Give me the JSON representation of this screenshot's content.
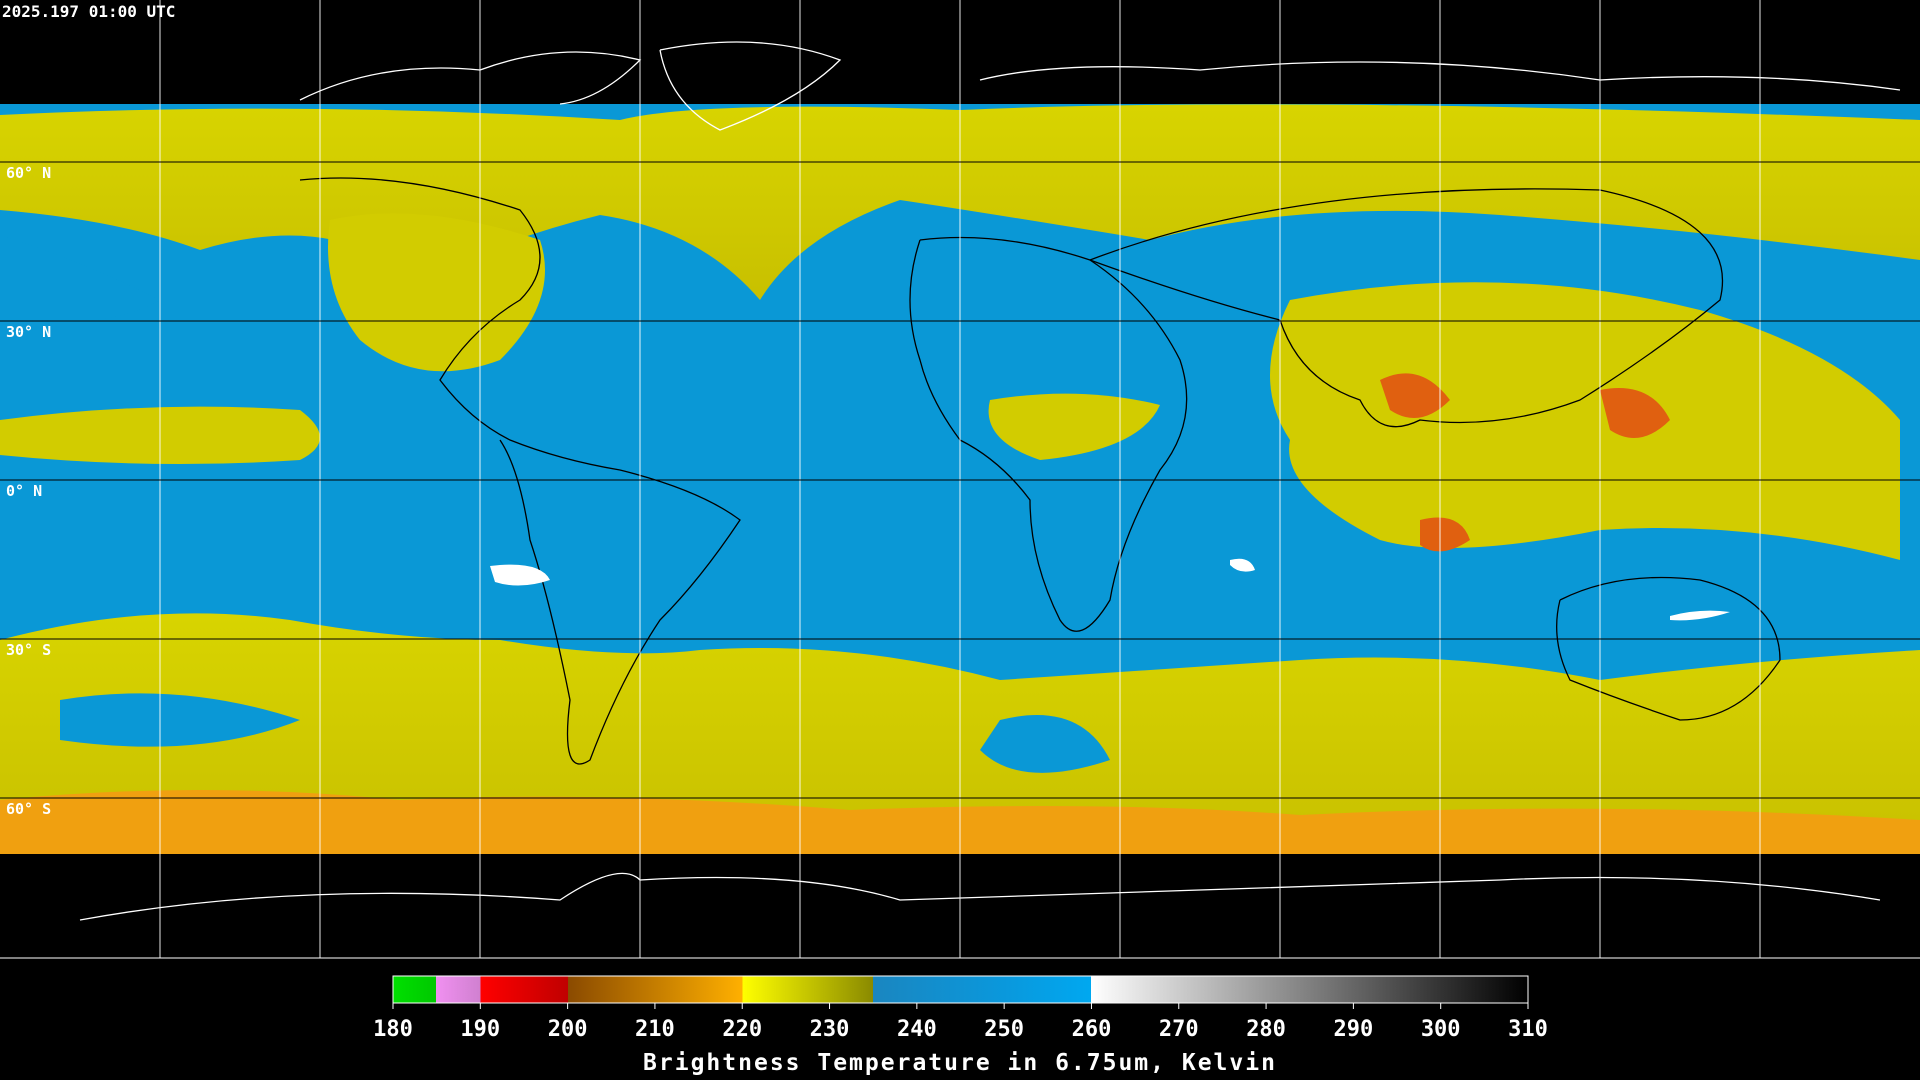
{
  "header": {
    "timestamp": "2025.197 01:00 UTC"
  },
  "map": {
    "latitude_labels": [
      "60° N",
      "30° N",
      "0° N",
      "30° S",
      "60° S"
    ]
  },
  "colorbar": {
    "range": [
      180,
      310
    ],
    "ticks": [
      180,
      190,
      200,
      210,
      220,
      230,
      240,
      250,
      260,
      270,
      280,
      290,
      300,
      310
    ],
    "title": "Brightness Temperature in 6.75um, Kelvin"
  }
}
